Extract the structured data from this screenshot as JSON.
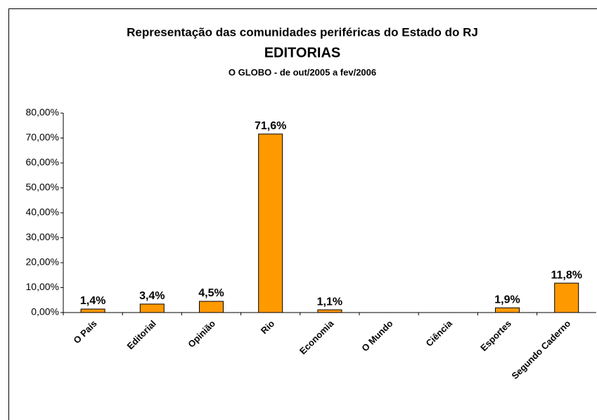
{
  "chart_data": {
    "type": "bar",
    "title": "Representação das comunidades periféricas do Estado do RJ",
    "subtitle": "EDITORIAS",
    "caption": "O GLOBO - de out/2005 a fev/2006",
    "categories": [
      "O País",
      "Editorial",
      "Opinião",
      "Rio",
      "Economia",
      "O Mundo",
      "Ciência",
      "Esportes",
      "Segundo Caderno"
    ],
    "values": [
      1.4,
      3.4,
      4.5,
      71.6,
      1.1,
      null,
      null,
      1.9,
      11.8
    ],
    "value_labels": [
      "1,4%",
      "3,4%",
      "4,5%",
      "71,6%",
      "1,1%",
      null,
      null,
      "1,9%",
      "11,8%"
    ],
    "color": "#FF9900",
    "ylim": [
      0,
      80
    ],
    "yticks": [
      {
        "value": 0,
        "label": "0,00%"
      },
      {
        "value": 10,
        "label": "10,00%"
      },
      {
        "value": 20,
        "label": "20,00%"
      },
      {
        "value": 30,
        "label": "30,00%"
      },
      {
        "value": 40,
        "label": "40,00%"
      },
      {
        "value": 50,
        "label": "50,00%"
      },
      {
        "value": 60,
        "label": "60,00%"
      },
      {
        "value": 70,
        "label": "70,00%"
      },
      {
        "value": 80,
        "label": "80,00%"
      }
    ]
  }
}
